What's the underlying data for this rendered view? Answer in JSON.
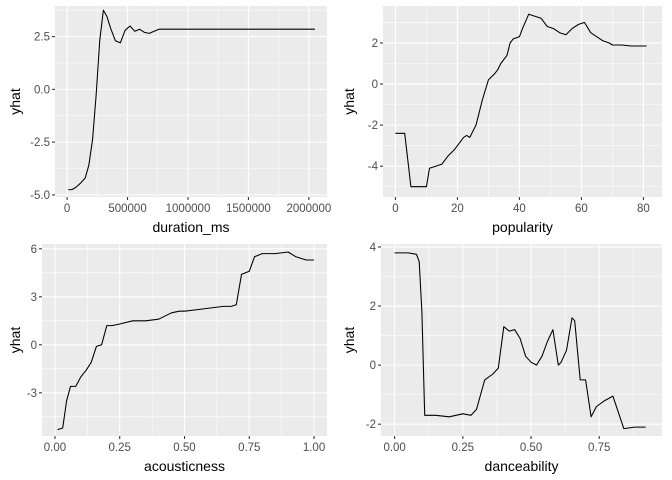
{
  "chart_data": [
    {
      "type": "line",
      "xlabel": "duration_ms",
      "ylabel": "yhat",
      "xlim": [
        -100000,
        2150000
      ],
      "ylim": [
        -5.1,
        3.95
      ],
      "xticks": [
        0,
        500000,
        1000000,
        1500000,
        2000000
      ],
      "xticklabels": [
        "0",
        "500000",
        "1000000",
        "1500000",
        "2000000"
      ],
      "yticks": [
        -5.0,
        -2.5,
        0.0,
        2.5
      ],
      "yticklabels": [
        "-5.0",
        "-2.5",
        "0.0",
        "2.5"
      ],
      "x": [
        10000,
        40000,
        70000,
        110000,
        150000,
        180000,
        210000,
        240000,
        270000,
        300000,
        330000,
        360000,
        400000,
        440000,
        480000,
        520000,
        560000,
        600000,
        640000,
        680000,
        720000,
        760000,
        2050000
      ],
      "y": [
        -4.75,
        -4.75,
        -4.65,
        -4.45,
        -4.2,
        -3.6,
        -2.4,
        -0.3,
        2.3,
        3.75,
        3.45,
        2.9,
        2.3,
        2.2,
        2.8,
        3.0,
        2.75,
        2.85,
        2.7,
        2.65,
        2.75,
        2.85,
        2.85
      ],
      "grid": true,
      "legend": "none"
    },
    {
      "type": "line",
      "xlabel": "popularity",
      "ylabel": "yhat",
      "xlim": [
        -4,
        86
      ],
      "ylim": [
        -5.5,
        3.8
      ],
      "xticks": [
        0,
        20,
        40,
        60,
        80
      ],
      "xticklabels": [
        "0",
        "20",
        "40",
        "60",
        "80"
      ],
      "yticks": [
        -4,
        -2,
        0,
        2
      ],
      "yticklabels": [
        "-4",
        "-2",
        "0",
        "2"
      ],
      "x": [
        0,
        3,
        5,
        7,
        10,
        11,
        13,
        15,
        17,
        19,
        20,
        22,
        23,
        24,
        26,
        28,
        30,
        32,
        33,
        34,
        36,
        37,
        38,
        40,
        41,
        43,
        45,
        47,
        49,
        51,
        53,
        55,
        57,
        59,
        61,
        63,
        65,
        67,
        69,
        70,
        73,
        76,
        79,
        81
      ],
      "y": [
        -2.4,
        -2.4,
        -5.0,
        -5.0,
        -5.0,
        -4.1,
        -4.0,
        -3.9,
        -3.5,
        -3.2,
        -3.0,
        -2.6,
        -2.5,
        -2.6,
        -2.0,
        -0.8,
        0.2,
        0.5,
        0.7,
        1.0,
        1.4,
        2.0,
        2.2,
        2.3,
        2.7,
        3.4,
        3.3,
        3.2,
        2.8,
        2.7,
        2.5,
        2.4,
        2.7,
        2.9,
        3.0,
        2.5,
        2.3,
        2.1,
        2.0,
        1.9,
        1.9,
        1.85,
        1.85,
        1.85
      ],
      "grid": true,
      "legend": "none"
    },
    {
      "type": "line",
      "xlabel": "acousticness",
      "ylabel": "yhat",
      "xlim": [
        -0.05,
        1.05
      ],
      "ylim": [
        -5.7,
        6.3
      ],
      "xticks": [
        0.0,
        0.25,
        0.5,
        0.75,
        1.0
      ],
      "xticklabels": [
        "0.00",
        "0.25",
        "0.50",
        "0.75",
        "1.00"
      ],
      "yticks": [
        -3,
        0,
        3,
        6
      ],
      "yticklabels": [
        "-3",
        "0",
        "3",
        "6"
      ],
      "x": [
        0.01,
        0.03,
        0.045,
        0.06,
        0.08,
        0.1,
        0.12,
        0.14,
        0.16,
        0.18,
        0.2,
        0.22,
        0.25,
        0.3,
        0.35,
        0.4,
        0.45,
        0.48,
        0.5,
        0.55,
        0.6,
        0.65,
        0.68,
        0.7,
        0.72,
        0.75,
        0.77,
        0.8,
        0.85,
        0.9,
        0.93,
        0.97,
        1.0
      ],
      "y": [
        -5.3,
        -5.2,
        -3.5,
        -2.6,
        -2.6,
        -2.0,
        -1.6,
        -1.1,
        -0.1,
        0.0,
        1.2,
        1.2,
        1.3,
        1.5,
        1.5,
        1.6,
        2.0,
        2.1,
        2.1,
        2.2,
        2.3,
        2.4,
        2.4,
        2.5,
        4.4,
        4.6,
        5.5,
        5.7,
        5.7,
        5.8,
        5.5,
        5.3,
        5.3
      ],
      "grid": true,
      "legend": "none"
    },
    {
      "type": "line",
      "xlabel": "danceability",
      "ylabel": "yhat",
      "xlim": [
        -0.05,
        0.98
      ],
      "ylim": [
        -2.4,
        4.1
      ],
      "xticks": [
        0.0,
        0.25,
        0.5,
        0.75
      ],
      "xticklabels": [
        "0.00",
        "0.25",
        "0.50",
        "0.75"
      ],
      "yticks": [
        -2,
        0,
        2,
        4
      ],
      "yticklabels": [
        "-2",
        "0",
        "2",
        "4"
      ],
      "x": [
        0.0,
        0.05,
        0.08,
        0.09,
        0.1,
        0.11,
        0.15,
        0.2,
        0.25,
        0.28,
        0.3,
        0.33,
        0.36,
        0.38,
        0.4,
        0.42,
        0.44,
        0.46,
        0.48,
        0.5,
        0.52,
        0.54,
        0.56,
        0.58,
        0.6,
        0.61,
        0.63,
        0.65,
        0.66,
        0.68,
        0.7,
        0.72,
        0.74,
        0.77,
        0.8,
        0.84,
        0.88,
        0.92
      ],
      "y": [
        3.8,
        3.8,
        3.75,
        3.5,
        1.8,
        -1.7,
        -1.7,
        -1.75,
        -1.65,
        -1.7,
        -1.5,
        -0.5,
        -0.3,
        -0.1,
        1.3,
        1.15,
        1.2,
        0.9,
        0.3,
        0.1,
        0.0,
        0.3,
        0.8,
        1.2,
        0.0,
        0.1,
        0.5,
        1.6,
        1.5,
        -0.5,
        -0.5,
        -1.75,
        -1.4,
        -1.2,
        -1.05,
        -2.15,
        -2.1,
        -2.1
      ],
      "grid": true,
      "legend": "none"
    }
  ]
}
